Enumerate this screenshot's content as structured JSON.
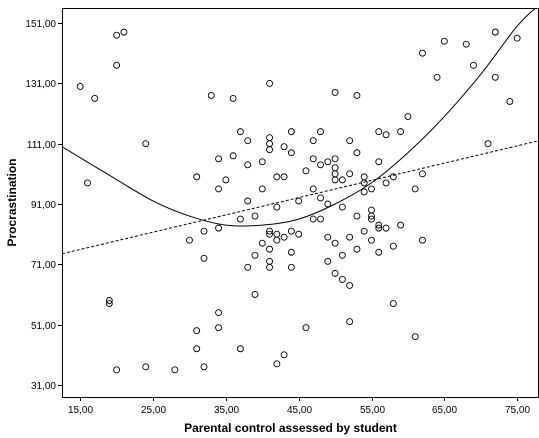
{
  "chart_data": {
    "type": "scatter",
    "title": "",
    "xlabel": "Parental control assessed by student",
    "ylabel": "Procrastination",
    "xlim": [
      12.5,
      78
    ],
    "ylim": [
      27,
      156
    ],
    "x_ticks": [
      15,
      25,
      35,
      45,
      55,
      65,
      75
    ],
    "x_tick_labels": [
      "15,00",
      "25,00",
      "35,00",
      "45,00",
      "55,00",
      "65,00",
      "75,00"
    ],
    "y_ticks": [
      31,
      51,
      71,
      91,
      111,
      131,
      151
    ],
    "y_tick_labels": [
      "31,00",
      "51,00",
      "71,00",
      "91,00",
      "111,00",
      "131,00",
      "151,00"
    ],
    "grid": false,
    "series": [
      {
        "kind": "points",
        "points": [
          [
            15,
            130
          ],
          [
            16,
            98
          ],
          [
            17,
            126
          ],
          [
            19,
            59
          ],
          [
            19,
            58
          ],
          [
            20,
            147
          ],
          [
            21,
            148
          ],
          [
            20,
            137
          ],
          [
            20,
            36
          ],
          [
            24,
            111
          ],
          [
            24,
            37
          ],
          [
            28,
            36
          ],
          [
            30,
            79
          ],
          [
            31,
            100
          ],
          [
            31,
            49
          ],
          [
            31,
            43
          ],
          [
            32,
            37
          ],
          [
            32,
            73
          ],
          [
            32,
            82
          ],
          [
            33,
            127
          ],
          [
            34,
            96
          ],
          [
            34,
            55
          ],
          [
            34,
            50
          ],
          [
            34,
            83
          ],
          [
            34,
            106
          ],
          [
            35,
            99
          ],
          [
            36,
            107
          ],
          [
            36,
            126
          ],
          [
            37,
            86
          ],
          [
            37,
            115
          ],
          [
            37,
            43
          ],
          [
            38,
            112
          ],
          [
            38,
            70
          ],
          [
            38,
            92
          ],
          [
            38,
            104
          ],
          [
            39,
            87
          ],
          [
            39,
            61
          ],
          [
            39,
            74
          ],
          [
            40,
            105
          ],
          [
            40,
            78
          ],
          [
            40,
            96
          ],
          [
            41,
            131
          ],
          [
            41,
            113
          ],
          [
            41,
            111
          ],
          [
            41,
            109
          ],
          [
            41,
            82
          ],
          [
            41,
            81
          ],
          [
            41,
            76
          ],
          [
            41,
            72
          ],
          [
            41,
            70
          ],
          [
            42,
            38
          ],
          [
            42,
            100
          ],
          [
            42,
            90
          ],
          [
            42,
            81
          ],
          [
            42,
            79
          ],
          [
            43,
            110
          ],
          [
            43,
            100
          ],
          [
            43,
            80
          ],
          [
            43,
            41
          ],
          [
            44,
            115
          ],
          [
            44,
            108
          ],
          [
            44,
            82
          ],
          [
            44,
            75
          ],
          [
            44,
            70
          ],
          [
            45,
            92
          ],
          [
            45,
            81
          ],
          [
            46,
            102
          ],
          [
            46,
            50
          ],
          [
            47,
            112
          ],
          [
            47,
            106
          ],
          [
            47,
            96
          ],
          [
            47,
            86
          ],
          [
            48,
            115
          ],
          [
            48,
            104
          ],
          [
            48,
            93
          ],
          [
            48,
            86
          ],
          [
            49,
            105
          ],
          [
            49,
            91
          ],
          [
            49,
            80
          ],
          [
            49,
            72
          ],
          [
            50,
            128
          ],
          [
            50,
            106
          ],
          [
            50,
            103
          ],
          [
            50,
            101
          ],
          [
            50,
            99
          ],
          [
            50,
            78
          ],
          [
            50,
            68
          ],
          [
            51,
            99
          ],
          [
            51,
            90
          ],
          [
            51,
            74
          ],
          [
            51,
            66
          ],
          [
            52,
            112
          ],
          [
            52,
            101
          ],
          [
            52,
            80
          ],
          [
            52,
            52
          ],
          [
            52,
            64
          ],
          [
            53,
            127
          ],
          [
            53,
            108
          ],
          [
            53,
            87
          ],
          [
            53,
            76
          ],
          [
            54,
            100
          ],
          [
            54,
            95
          ],
          [
            54,
            98
          ],
          [
            54,
            82
          ],
          [
            55,
            96
          ],
          [
            55,
            89
          ],
          [
            55,
            87
          ],
          [
            55,
            86
          ],
          [
            55,
            79
          ],
          [
            56,
            115
          ],
          [
            56,
            105
          ],
          [
            56,
            84
          ],
          [
            56,
            83
          ],
          [
            56,
            75
          ],
          [
            57,
            114
          ],
          [
            57,
            98
          ],
          [
            57,
            83
          ],
          [
            58,
            100
          ],
          [
            58,
            77
          ],
          [
            58,
            58
          ],
          [
            59,
            115
          ],
          [
            59,
            84
          ],
          [
            60,
            120
          ],
          [
            61,
            96
          ],
          [
            61,
            47
          ],
          [
            62,
            141
          ],
          [
            62,
            101
          ],
          [
            62,
            79
          ],
          [
            64,
            133
          ],
          [
            65,
            145
          ],
          [
            68,
            144
          ],
          [
            69,
            137
          ],
          [
            71,
            111
          ],
          [
            72,
            148
          ],
          [
            72,
            133
          ],
          [
            74,
            125
          ],
          [
            75,
            146
          ]
        ]
      },
      {
        "kind": "linear_fit",
        "style": "dashed",
        "x": [
          12.5,
          78
        ],
        "y": [
          74.5,
          112
        ]
      },
      {
        "kind": "quadratic_fit",
        "style": "solid",
        "x": [
          12.5,
          18,
          25,
          30,
          35,
          40,
          45,
          50,
          55,
          60,
          65,
          70,
          75,
          78
        ],
        "y": [
          110,
          102,
          92,
          87,
          84,
          84,
          86,
          91,
          98,
          108,
          120,
          134,
          150,
          157
        ]
      }
    ]
  }
}
